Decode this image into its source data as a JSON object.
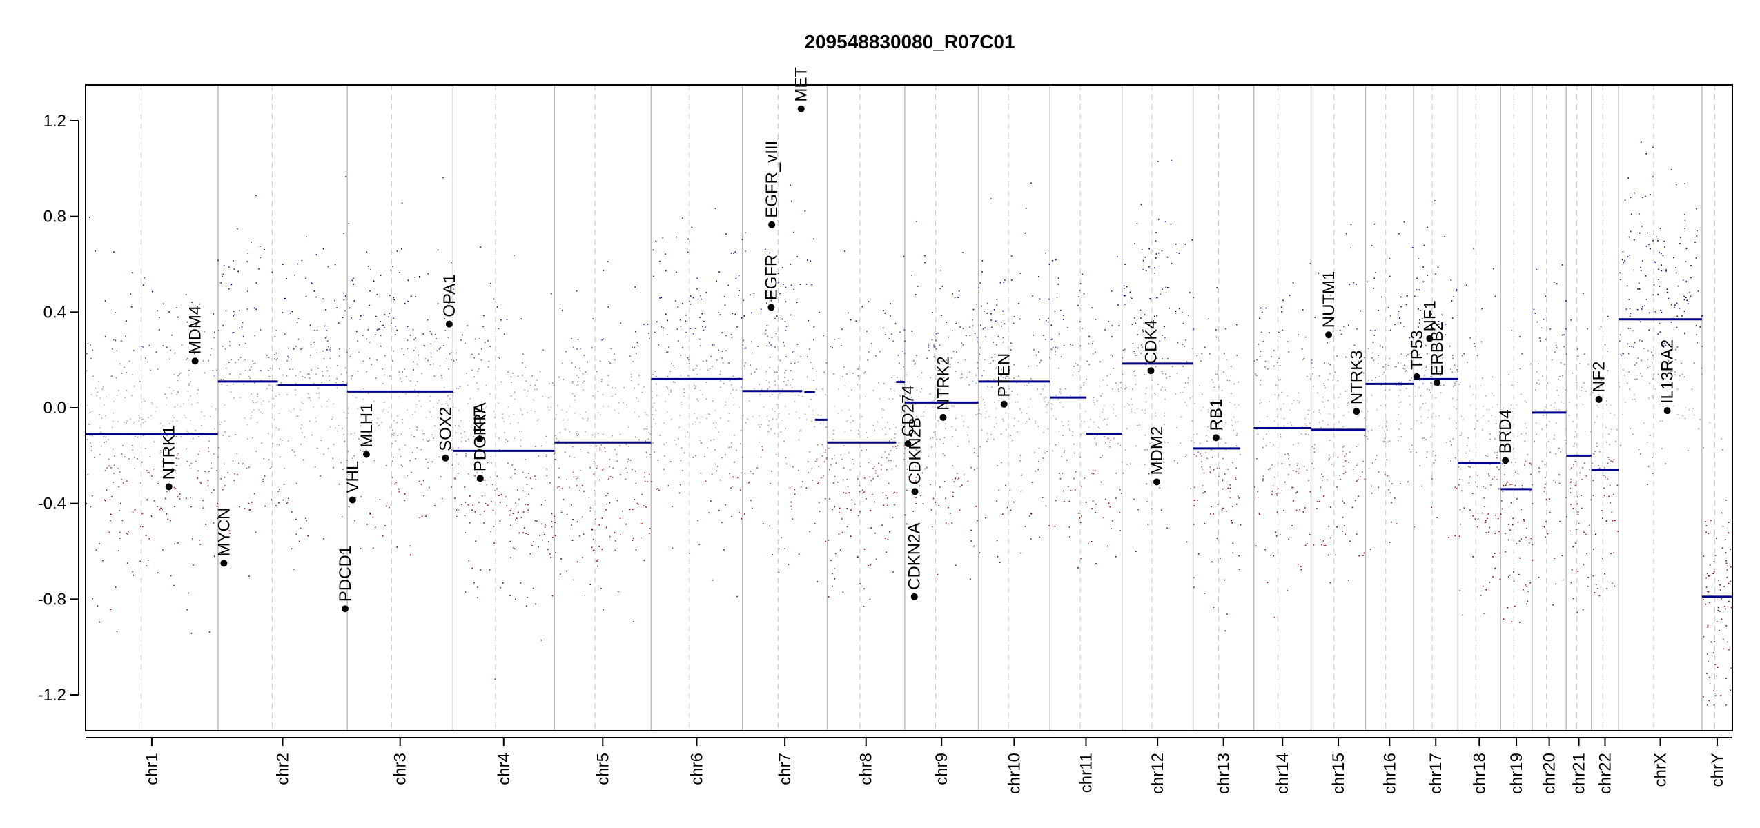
{
  "chart_data": {
    "type": "scatter",
    "title": "209548830080_R07C01",
    "xlabel": "",
    "ylabel": "",
    "ylim": [
      -1.35,
      1.35
    ],
    "yticks": [
      1.2,
      0.8,
      0.4,
      0.0,
      -0.4,
      -0.8,
      -1.2
    ],
    "ytick_labels": [
      "1.2",
      "0.8",
      "0.4",
      "0.0",
      "-0.4",
      "-0.8",
      "-1.2"
    ],
    "grid": false,
    "colors": {
      "gain": "#00008b",
      "loss": "#8b0000",
      "neutral": "#bdbdbd",
      "segment": "#00008b",
      "boundary": "#bdbdbd",
      "gene": "#000000"
    },
    "chromosomes": [
      {
        "name": "chr1",
        "x0": 0,
        "x1": 248,
        "segments": [
          [
            0,
            248,
            -0.11
          ]
        ]
      },
      {
        "name": "chr2",
        "x0": 248,
        "x1": 490,
        "segments": [
          [
            248,
            360,
            0.11
          ],
          [
            360,
            490,
            0.095
          ]
        ]
      },
      {
        "name": "chr3",
        "x0": 490,
        "x1": 688,
        "segments": [
          [
            490,
            688,
            0.068
          ]
        ]
      },
      {
        "name": "chr4",
        "x0": 688,
        "x1": 878,
        "segments": [
          [
            688,
            878,
            -0.18
          ]
        ]
      },
      {
        "name": "chr5",
        "x0": 878,
        "x1": 1059,
        "segments": [
          [
            878,
            1059,
            -0.145
          ]
        ]
      },
      {
        "name": "chr6",
        "x0": 1059,
        "x1": 1230,
        "segments": [
          [
            1059,
            1230,
            0.12
          ]
        ]
      },
      {
        "name": "chr7",
        "x0": 1230,
        "x1": 1389,
        "segments": [
          [
            1230,
            1342,
            0.07
          ],
          [
            1346,
            1366,
            0.065
          ],
          [
            1366,
            1389,
            -0.05
          ]
        ]
      },
      {
        "name": "chr8",
        "x0": 1389,
        "x1": 1534,
        "segments": [
          [
            1389,
            1518,
            -0.145
          ],
          [
            1518,
            1534,
            0.108
          ]
        ]
      },
      {
        "name": "chr9",
        "x0": 1534,
        "x1": 1672,
        "segments": [
          [
            1534,
            1672,
            0.022
          ]
        ]
      },
      {
        "name": "chr10",
        "x0": 1672,
        "x1": 1806,
        "segments": [
          [
            1672,
            1806,
            0.11
          ]
        ]
      },
      {
        "name": "chr11",
        "x0": 1806,
        "x1": 1941,
        "segments": [
          [
            1806,
            1874,
            0.043
          ],
          [
            1874,
            1941,
            -0.108
          ]
        ]
      },
      {
        "name": "chr12",
        "x0": 1941,
        "x1": 2074,
        "segments": [
          [
            1941,
            2074,
            0.185
          ]
        ]
      },
      {
        "name": "chr13",
        "x0": 2074,
        "x1": 2188,
        "segments": [
          [
            2074,
            2162,
            -0.17
          ]
        ]
      },
      {
        "name": "chr14",
        "x0": 2188,
        "x1": 2295,
        "segments": [
          [
            2188,
            2295,
            -0.085
          ]
        ]
      },
      {
        "name": "chr15",
        "x0": 2295,
        "x1": 2397,
        "segments": [
          [
            2295,
            2397,
            -0.092
          ]
        ]
      },
      {
        "name": "chr16",
        "x0": 2397,
        "x1": 2487,
        "segments": [
          [
            2397,
            2487,
            0.1
          ]
        ]
      },
      {
        "name": "chr17",
        "x0": 2487,
        "x1": 2570,
        "segments": [
          [
            2487,
            2570,
            0.12
          ]
        ]
      },
      {
        "name": "chr18",
        "x0": 2570,
        "x1": 2650,
        "segments": [
          [
            2570,
            2650,
            -0.23
          ]
        ]
      },
      {
        "name": "chr19",
        "x0": 2650,
        "x1": 2709,
        "segments": [
          [
            2650,
            2709,
            -0.34
          ]
        ]
      },
      {
        "name": "chr20",
        "x0": 2709,
        "x1": 2773,
        "segments": [
          [
            2709,
            2773,
            -0.02
          ]
        ]
      },
      {
        "name": "chr21",
        "x0": 2773,
        "x1": 2820,
        "segments": [
          [
            2773,
            2820,
            -0.2
          ]
        ]
      },
      {
        "name": "chr22",
        "x0": 2820,
        "x1": 2871,
        "segments": [
          [
            2820,
            2871,
            -0.26
          ]
        ]
      },
      {
        "name": "chrX",
        "x0": 2871,
        "x1": 3027,
        "segments": [
          [
            2871,
            3027,
            0.37
          ]
        ]
      },
      {
        "name": "chrY",
        "x0": 3027,
        "x1": 3084,
        "segments": [
          [
            3027,
            3084,
            -0.79
          ]
        ]
      }
    ],
    "genes": [
      {
        "name": "NTRK1",
        "x": 156,
        "y": -0.33
      },
      {
        "name": "MDM4",
        "x": 205,
        "y": 0.195
      },
      {
        "name": "MYCN",
        "x": 259,
        "y": -0.65
      },
      {
        "name": "PDCD1",
        "x": 486,
        "y": -0.84
      },
      {
        "name": "VHL",
        "x": 500,
        "y": -0.385
      },
      {
        "name": "MLH1",
        "x": 526,
        "y": -0.195
      },
      {
        "name": "SOX2",
        "x": 674,
        "y": -0.21
      },
      {
        "name": "OPA1",
        "x": 681,
        "y": 0.35
      },
      {
        "name": "KIT",
        "x": 738,
        "y": -0.13
      },
      {
        "name": "PDGFRA",
        "x": 739,
        "y": -0.295
      },
      {
        "name": "EGFR",
        "x": 1284,
        "y": 0.42
      },
      {
        "name": "EGFR_vIII",
        "x": 1285,
        "y": 0.765
      },
      {
        "name": "MET",
        "x": 1340,
        "y": 1.25
      },
      {
        "name": "CDKN2A",
        "x": 1552,
        "y": -0.79
      },
      {
        "name": "CDKN2B",
        "x": 1553,
        "y": -0.35
      },
      {
        "name": "CD274",
        "x": 1540,
        "y": -0.15
      },
      {
        "name": "NTRK2",
        "x": 1606,
        "y": -0.04
      },
      {
        "name": "PTEN",
        "x": 1720,
        "y": 0.015
      },
      {
        "name": "CDK4",
        "x": 1995,
        "y": 0.155
      },
      {
        "name": "MDM2",
        "x": 2006,
        "y": -0.31
      },
      {
        "name": "RB1",
        "x": 2117,
        "y": -0.125
      },
      {
        "name": "NUTM1",
        "x": 2328,
        "y": 0.305
      },
      {
        "name": "NTRK3",
        "x": 2380,
        "y": -0.015
      },
      {
        "name": "TP53",
        "x": 2493,
        "y": 0.13
      },
      {
        "name": "ERBB2",
        "x": 2531,
        "y": 0.105
      },
      {
        "name": "NF1",
        "x": 2517,
        "y": 0.29
      },
      {
        "name": "BRD4",
        "x": 2659,
        "y": -0.22
      },
      {
        "name": "NF2",
        "x": 2834,
        "y": 0.035
      },
      {
        "name": "IL13RA2",
        "x": 2962,
        "y": -0.012
      }
    ]
  }
}
